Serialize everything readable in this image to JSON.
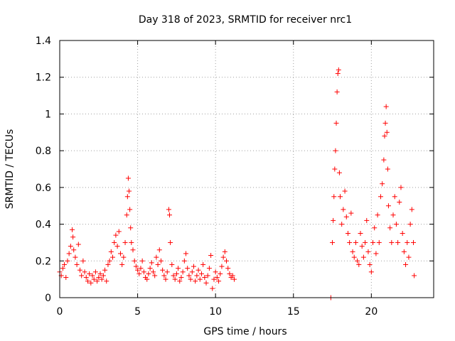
{
  "chart_data": {
    "type": "scatter",
    "title": "Day 318 of 2023, SRMTID for receiver nrc1",
    "xlabel": "GPS time / hours",
    "ylabel": "SRMTID / TECUs",
    "xlim": [
      0,
      24
    ],
    "ylim": [
      0,
      1.4
    ],
    "xticks": [
      0,
      5,
      10,
      15,
      20
    ],
    "xtick_labels": [
      "0",
      "5",
      "10",
      "15",
      "20"
    ],
    "yticks": [
      0,
      0.2,
      0.4,
      0.6,
      0.8,
      1.0,
      1.2,
      1.4
    ],
    "ytick_labels": [
      "0",
      "0.2",
      "0.4",
      "0.6",
      "0.8",
      "1",
      "1.2",
      "1.4"
    ],
    "grid": true,
    "marker": "+",
    "color": "#ff0000",
    "series": [
      {
        "name": "SRMTID",
        "points": [
          [
            0.0,
            0.14
          ],
          [
            0.1,
            0.12
          ],
          [
            0.2,
            0.16
          ],
          [
            0.3,
            0.18
          ],
          [
            0.4,
            0.11
          ],
          [
            0.5,
            0.2
          ],
          [
            0.6,
            0.24
          ],
          [
            0.7,
            0.28
          ],
          [
            0.8,
            0.37
          ],
          [
            0.85,
            0.33
          ],
          [
            0.9,
            0.26
          ],
          [
            1.0,
            0.22
          ],
          [
            1.1,
            0.18
          ],
          [
            1.2,
            0.29
          ],
          [
            1.3,
            0.15
          ],
          [
            1.4,
            0.12
          ],
          [
            1.5,
            0.2
          ],
          [
            1.6,
            0.14
          ],
          [
            1.7,
            0.11
          ],
          [
            1.8,
            0.09
          ],
          [
            1.9,
            0.13
          ],
          [
            2.0,
            0.08
          ],
          [
            2.1,
            0.12
          ],
          [
            2.2,
            0.1
          ],
          [
            2.3,
            0.14
          ],
          [
            2.4,
            0.09
          ],
          [
            2.5,
            0.11
          ],
          [
            2.6,
            0.13
          ],
          [
            2.7,
            0.1
          ],
          [
            2.8,
            0.12
          ],
          [
            2.9,
            0.15
          ],
          [
            3.0,
            0.09
          ],
          [
            3.1,
            0.18
          ],
          [
            3.2,
            0.2
          ],
          [
            3.3,
            0.25
          ],
          [
            3.4,
            0.22
          ],
          [
            3.5,
            0.3
          ],
          [
            3.6,
            0.34
          ],
          [
            3.7,
            0.28
          ],
          [
            3.8,
            0.36
          ],
          [
            3.9,
            0.24
          ],
          [
            4.0,
            0.18
          ],
          [
            4.1,
            0.22
          ],
          [
            4.2,
            0.3
          ],
          [
            4.3,
            0.45
          ],
          [
            4.35,
            0.55
          ],
          [
            4.4,
            0.65
          ],
          [
            4.45,
            0.58
          ],
          [
            4.5,
            0.48
          ],
          [
            4.55,
            0.38
          ],
          [
            4.6,
            0.3
          ],
          [
            4.7,
            0.26
          ],
          [
            4.8,
            0.2
          ],
          [
            4.9,
            0.17
          ],
          [
            5.0,
            0.15
          ],
          [
            5.1,
            0.13
          ],
          [
            5.2,
            0.16
          ],
          [
            5.3,
            0.2
          ],
          [
            5.4,
            0.14
          ],
          [
            5.5,
            0.11
          ],
          [
            5.6,
            0.1
          ],
          [
            5.7,
            0.13
          ],
          [
            5.8,
            0.16
          ],
          [
            5.9,
            0.19
          ],
          [
            6.0,
            0.14
          ],
          [
            6.1,
            0.12
          ],
          [
            6.2,
            0.22
          ],
          [
            6.3,
            0.18
          ],
          [
            6.4,
            0.26
          ],
          [
            6.5,
            0.2
          ],
          [
            6.6,
            0.15
          ],
          [
            6.7,
            0.12
          ],
          [
            6.8,
            0.1
          ],
          [
            6.9,
            0.14
          ],
          [
            7.0,
            0.48
          ],
          [
            7.05,
            0.45
          ],
          [
            7.1,
            0.3
          ],
          [
            7.2,
            0.18
          ],
          [
            7.3,
            0.12
          ],
          [
            7.4,
            0.1
          ],
          [
            7.5,
            0.13
          ],
          [
            7.6,
            0.16
          ],
          [
            7.7,
            0.09
          ],
          [
            7.8,
            0.11
          ],
          [
            7.9,
            0.14
          ],
          [
            8.0,
            0.2
          ],
          [
            8.1,
            0.24
          ],
          [
            8.2,
            0.16
          ],
          [
            8.3,
            0.12
          ],
          [
            8.4,
            0.1
          ],
          [
            8.5,
            0.14
          ],
          [
            8.6,
            0.17
          ],
          [
            8.7,
            0.09
          ],
          [
            8.8,
            0.12
          ],
          [
            8.9,
            0.15
          ],
          [
            9.0,
            0.1
          ],
          [
            9.1,
            0.13
          ],
          [
            9.2,
            0.18
          ],
          [
            9.3,
            0.11
          ],
          [
            9.4,
            0.08
          ],
          [
            9.5,
            0.12
          ],
          [
            9.6,
            0.16
          ],
          [
            9.7,
            0.23
          ],
          [
            9.8,
            0.05
          ],
          [
            9.9,
            0.1
          ],
          [
            10.0,
            0.14
          ],
          [
            10.1,
            0.11
          ],
          [
            10.2,
            0.09
          ],
          [
            10.3,
            0.13
          ],
          [
            10.4,
            0.17
          ],
          [
            10.5,
            0.22
          ],
          [
            10.6,
            0.25
          ],
          [
            10.7,
            0.2
          ],
          [
            10.8,
            0.16
          ],
          [
            10.9,
            0.13
          ],
          [
            11.0,
            0.11
          ],
          [
            11.1,
            0.12
          ],
          [
            11.2,
            0.1
          ],
          [
            17.4,
            0.0
          ],
          [
            17.5,
            0.3
          ],
          [
            17.55,
            0.42
          ],
          [
            17.6,
            0.55
          ],
          [
            17.65,
            0.7
          ],
          [
            17.7,
            0.8
          ],
          [
            17.75,
            0.95
          ],
          [
            17.8,
            1.12
          ],
          [
            17.85,
            1.22
          ],
          [
            17.9,
            1.24
          ],
          [
            17.95,
            0.68
          ],
          [
            18.0,
            0.55
          ],
          [
            18.1,
            0.4
          ],
          [
            18.2,
            0.48
          ],
          [
            18.3,
            0.58
          ],
          [
            18.4,
            0.44
          ],
          [
            18.5,
            0.35
          ],
          [
            18.6,
            0.3
          ],
          [
            18.7,
            0.46
          ],
          [
            18.8,
            0.25
          ],
          [
            18.9,
            0.22
          ],
          [
            19.0,
            0.3
          ],
          [
            19.1,
            0.2
          ],
          [
            19.2,
            0.18
          ],
          [
            19.3,
            0.35
          ],
          [
            19.4,
            0.28
          ],
          [
            19.5,
            0.22
          ],
          [
            19.6,
            0.3
          ],
          [
            19.7,
            0.42
          ],
          [
            19.8,
            0.25
          ],
          [
            19.9,
            0.18
          ],
          [
            20.0,
            0.14
          ],
          [
            20.1,
            0.3
          ],
          [
            20.2,
            0.38
          ],
          [
            20.3,
            0.24
          ],
          [
            20.4,
            0.45
          ],
          [
            20.5,
            0.3
          ],
          [
            20.6,
            0.55
          ],
          [
            20.7,
            0.62
          ],
          [
            20.8,
            0.75
          ],
          [
            20.85,
            0.88
          ],
          [
            20.9,
            0.95
          ],
          [
            20.95,
            1.04
          ],
          [
            21.0,
            0.9
          ],
          [
            21.05,
            0.7
          ],
          [
            21.1,
            0.5
          ],
          [
            21.2,
            0.38
          ],
          [
            21.3,
            0.3
          ],
          [
            21.4,
            0.45
          ],
          [
            21.5,
            0.55
          ],
          [
            21.6,
            0.4
          ],
          [
            21.7,
            0.3
          ],
          [
            21.8,
            0.52
          ],
          [
            21.9,
            0.6
          ],
          [
            22.0,
            0.35
          ],
          [
            22.1,
            0.25
          ],
          [
            22.2,
            0.18
          ],
          [
            22.3,
            0.3
          ],
          [
            22.4,
            0.22
          ],
          [
            22.5,
            0.4
          ],
          [
            22.6,
            0.48
          ],
          [
            22.7,
            0.3
          ],
          [
            22.75,
            0.12
          ]
        ]
      }
    ]
  }
}
